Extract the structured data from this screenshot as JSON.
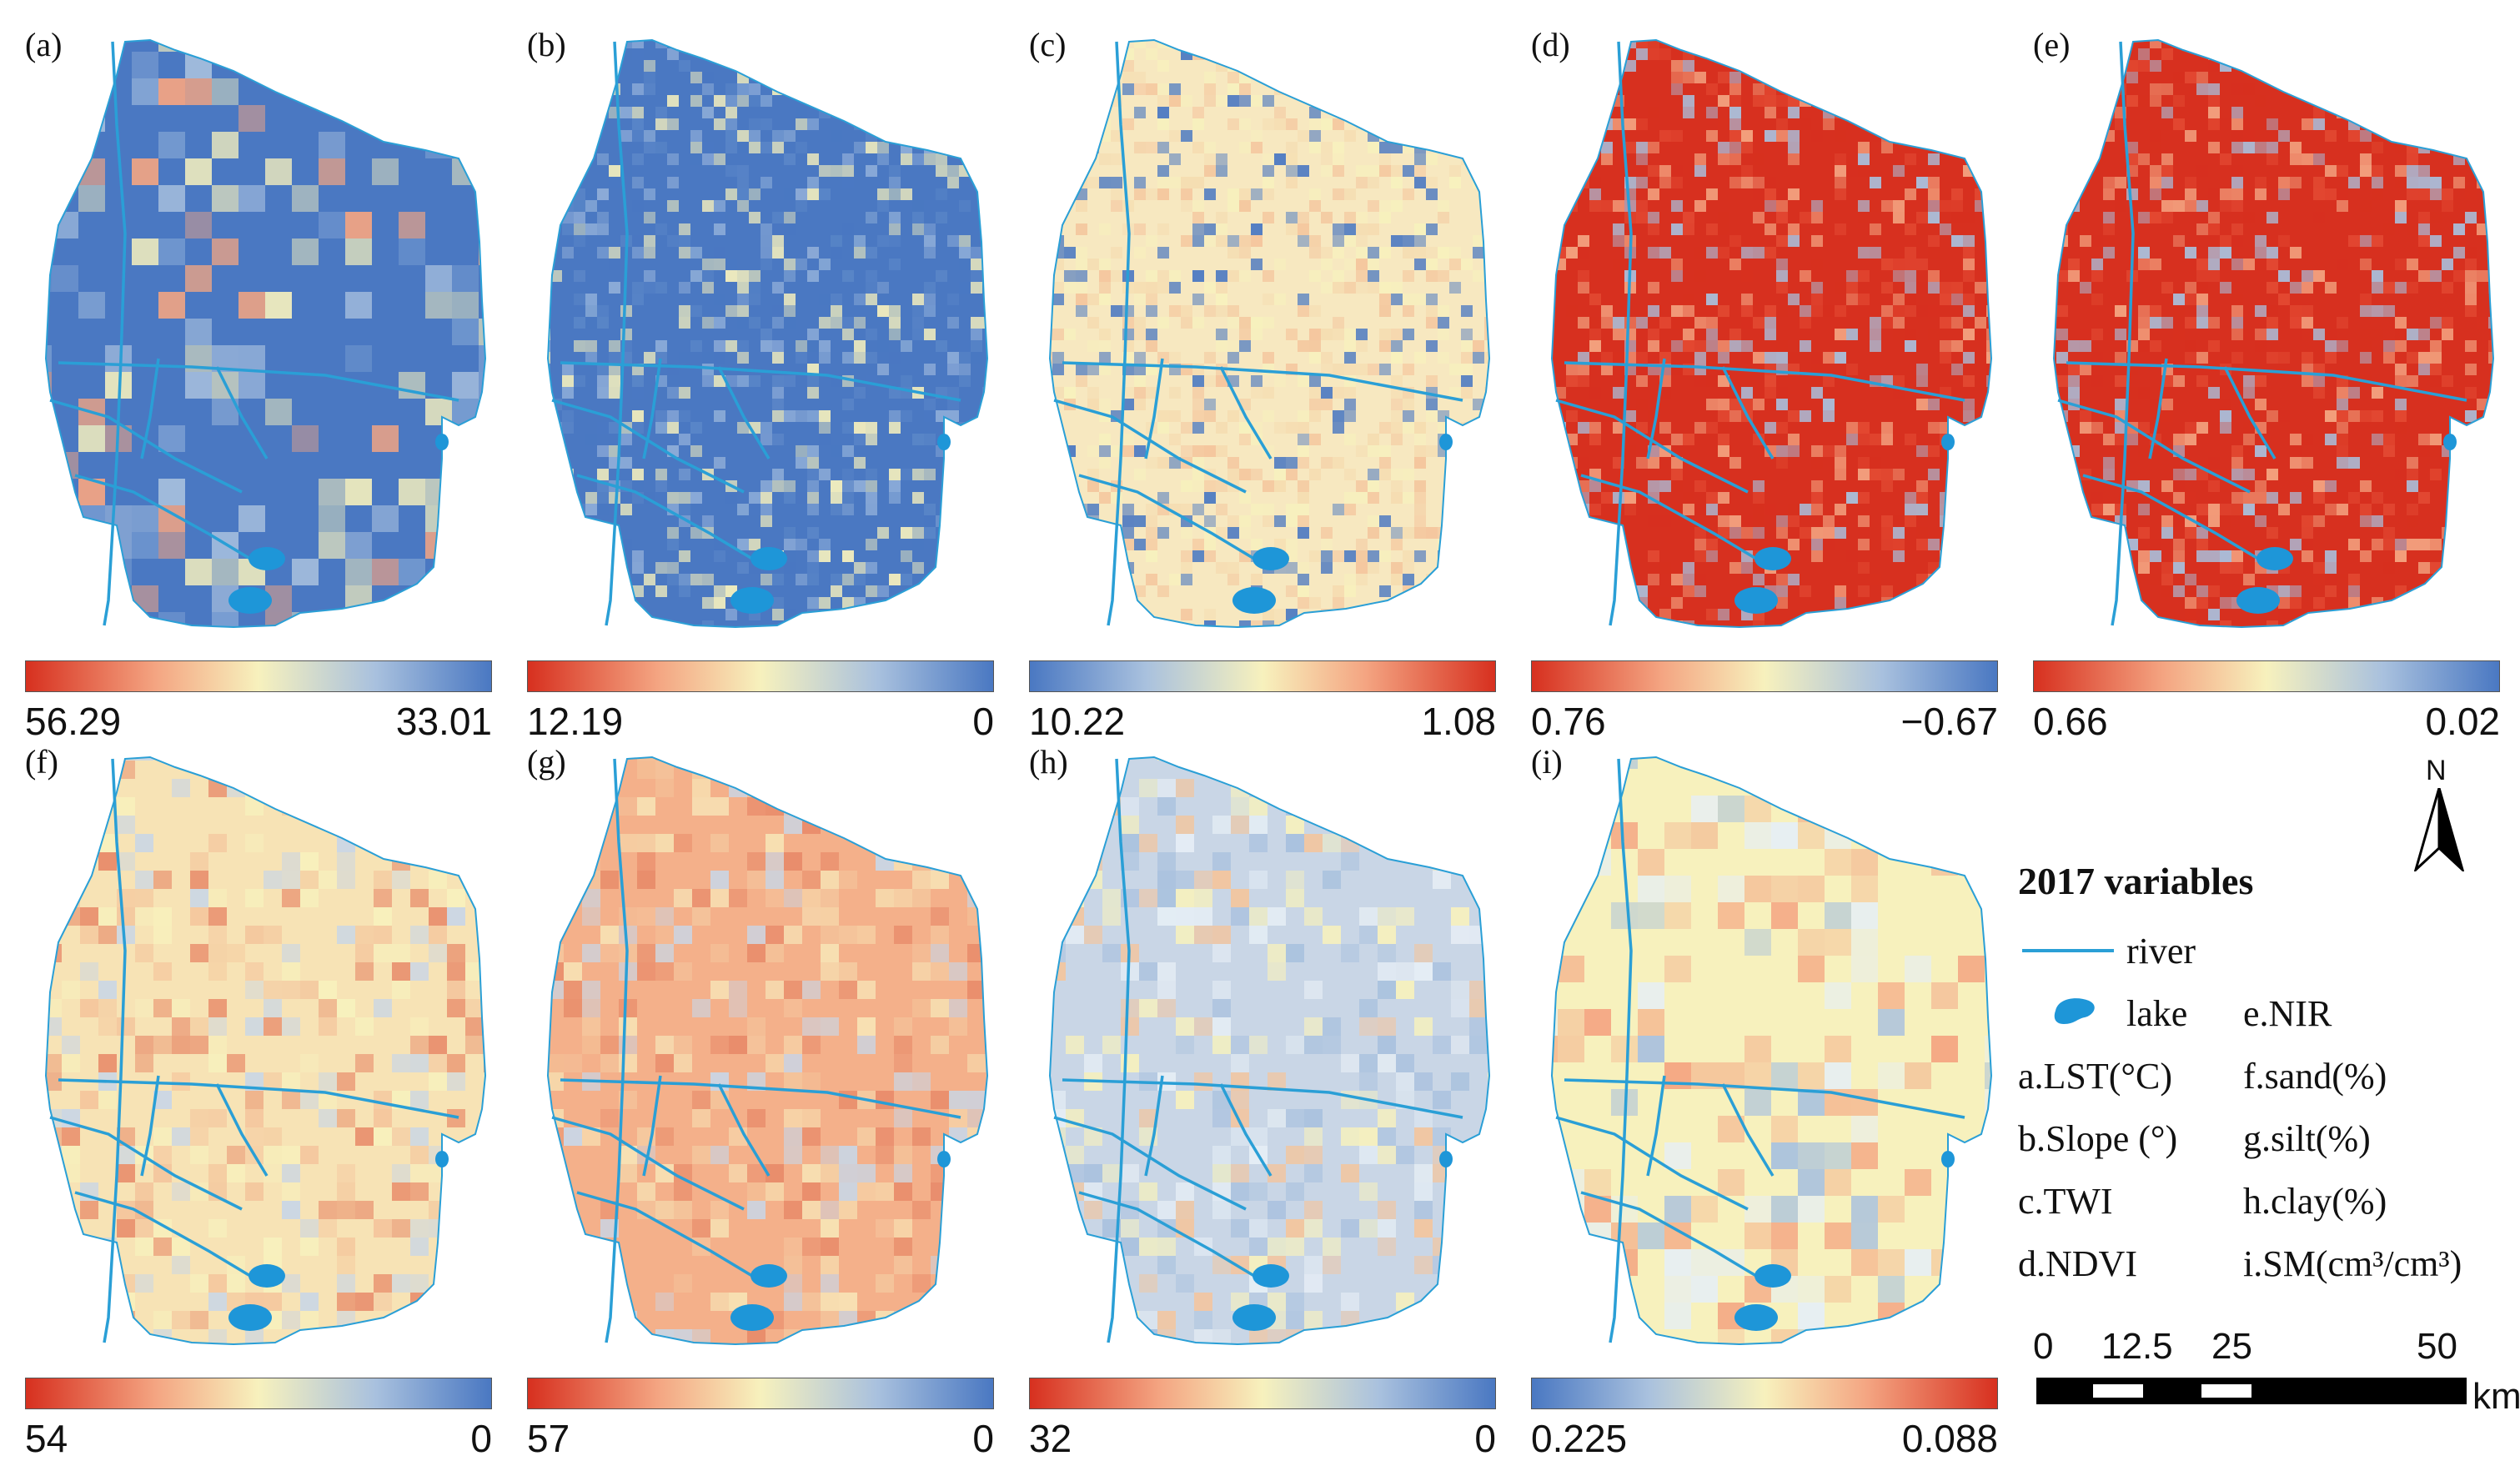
{
  "panels": [
    {
      "id": "a",
      "label": "(a)",
      "min": "56.29",
      "max": "33.01",
      "ramp": "red-blue",
      "texture": "coarse-lst"
    },
    {
      "id": "b",
      "label": "(b)",
      "min": "12.19",
      "max": "0",
      "ramp": "red-blue",
      "texture": "fine-blue"
    },
    {
      "id": "c",
      "label": "(c)",
      "min": "10.22",
      "max": "1.08",
      "ramp": "blue-red",
      "texture": "fine-cream"
    },
    {
      "id": "d",
      "label": "(d)",
      "min": "0.76",
      "max": "−0.67",
      "ramp": "red-blue",
      "texture": "fields-red"
    },
    {
      "id": "e",
      "label": "(e)",
      "min": "0.66",
      "max": "0.02",
      "ramp": "red-blue",
      "texture": "fields-red"
    },
    {
      "id": "f",
      "label": "(f)",
      "min": "54",
      "max": "0",
      "ramp": "red-blue",
      "texture": "smooth-sand"
    },
    {
      "id": "g",
      "label": "(g)",
      "min": "57",
      "max": "0",
      "ramp": "red-blue",
      "texture": "smooth-silt"
    },
    {
      "id": "h",
      "label": "(h)",
      "min": "32",
      "max": "0",
      "ramp": "red-blue",
      "texture": "smooth-clay"
    },
    {
      "id": "i",
      "label": "(i)",
      "min": "0.225",
      "max": "0.088",
      "ramp": "blue-red",
      "texture": "blocky-sm"
    }
  ],
  "legend": {
    "title": "2017 variables",
    "river": "river",
    "lake": "lake",
    "items_left": [
      "a.LST(°C)",
      "b.Slope (°)",
      "c.TWI",
      "d.NDVI"
    ],
    "items_right": [
      "e.NIR",
      "f.sand(%)",
      "g.silt(%)",
      "h.clay(%)",
      "i.SM(cm³/cm³)"
    ]
  },
  "north_label": "N",
  "scale_bar": {
    "ticks": [
      "0",
      "12.5",
      "25",
      "50"
    ],
    "unit": "km"
  },
  "colors": {
    "red": "#d7301f",
    "orange": "#f4a582",
    "cream": "#f7f1bd",
    "lightblue": "#a9c1de",
    "blue": "#4a78c2",
    "river": "#2a9fd6"
  }
}
